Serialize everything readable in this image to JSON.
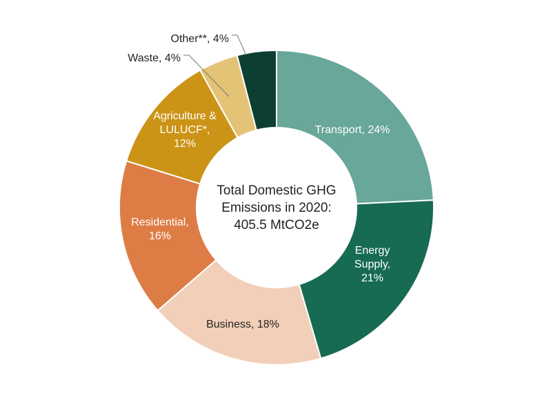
{
  "chart_data": {
    "type": "pie",
    "style": "donut",
    "center_text": [
      "Total Domestic GHG",
      "Emissions in 2020:",
      "405.5 MtCO2e"
    ],
    "slices": [
      {
        "label": "Transport",
        "value": 24,
        "value_text": "24%",
        "display": [
          "Transport, 24%"
        ],
        "color": "#68a79a",
        "text_color": "#ffffff"
      },
      {
        "label": "Energy Supply",
        "value": 21,
        "value_text": "21%",
        "display": [
          "Energy",
          "Supply,",
          "21%"
        ],
        "color": "#176b52",
        "text_color": "#ffffff"
      },
      {
        "label": "Business",
        "value": 18,
        "value_text": "18%",
        "display": [
          "Business, 18%"
        ],
        "color": "#f2cfb8",
        "text_color": "#222222"
      },
      {
        "label": "Residential",
        "value": 16,
        "value_text": "16%",
        "display": [
          "Residential,",
          "16%"
        ],
        "color": "#dd7d45",
        "text_color": "#ffffff"
      },
      {
        "label": "Agriculture & LULUCF*",
        "value": 12,
        "value_text": "12%",
        "display": [
          "Agriculture &",
          "LULUCF*,",
          "12%"
        ],
        "color": "#cb9417",
        "text_color": "#ffffff"
      },
      {
        "label": "Waste",
        "value": 4,
        "value_text": "4%",
        "display": [
          "Waste, 4%"
        ],
        "color": "#e4c377",
        "text_color": "#222222"
      },
      {
        "label": "Other**",
        "value": 4,
        "value_text": "4%",
        "display": [
          "Other**, 4%"
        ],
        "color": "#0c3f32",
        "text_color": "#222222"
      }
    ]
  }
}
